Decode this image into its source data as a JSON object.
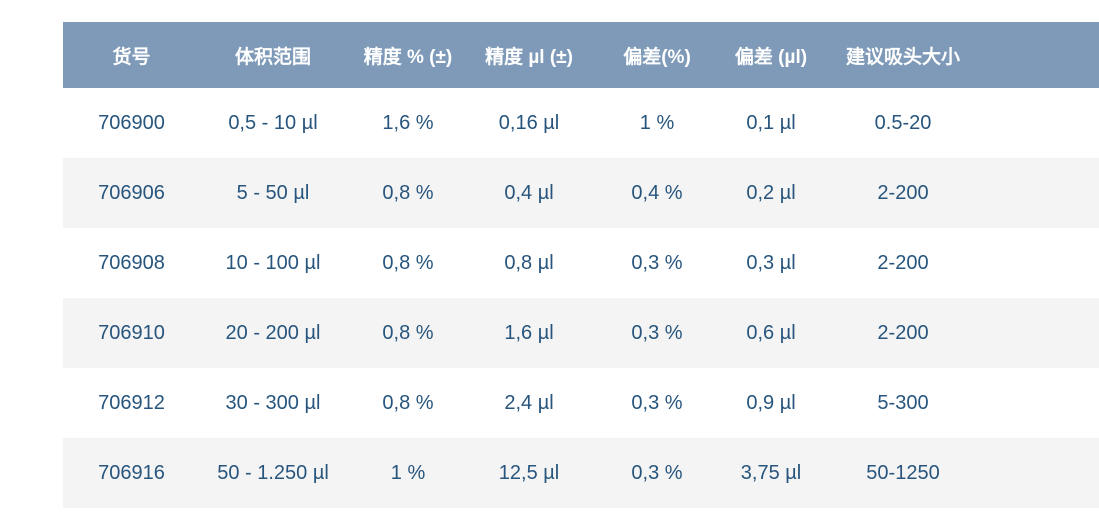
{
  "colors": {
    "header_background": "#7e9ab8",
    "header_text": "#ffffff",
    "cell_text": "#27557d",
    "stripe_row_background": "#f4f4f4",
    "plain_row_background": "#ffffff"
  },
  "table": {
    "headers": [
      "货号",
      "体积范围",
      "精度 % (±)",
      "精度 µl (±)",
      "偏差(%)",
      "偏差 (µl)",
      "建议吸头大小"
    ],
    "rows": [
      [
        "706900",
        "0,5 - 10 µl",
        "1,6 %",
        "0,16 µl",
        "1 %",
        "0,1 µl",
        "0.5-20"
      ],
      [
        "706906",
        "5 - 50 µl",
        "0,8 %",
        "0,4 µl",
        "0,4 %",
        "0,2 µl",
        "2-200"
      ],
      [
        "706908",
        "10 - 100 µl",
        "0,8 %",
        "0,8 µl",
        "0,3 %",
        "0,3 µl",
        "2-200"
      ],
      [
        "706910",
        "20 - 200 µl",
        "0,8 %",
        "1,6 µl",
        "0,3 %",
        "0,6 µl",
        "2-200"
      ],
      [
        "706912",
        "30 - 300 µl",
        "0,8 %",
        "2,4 µl",
        "0,3 %",
        "0,9 µl",
        "5-300"
      ],
      [
        "706916",
        "50 - 1.250 µl",
        "1 %",
        "12,5 µl",
        "0,3 %",
        "3,75 µl",
        "50-1250"
      ]
    ]
  }
}
